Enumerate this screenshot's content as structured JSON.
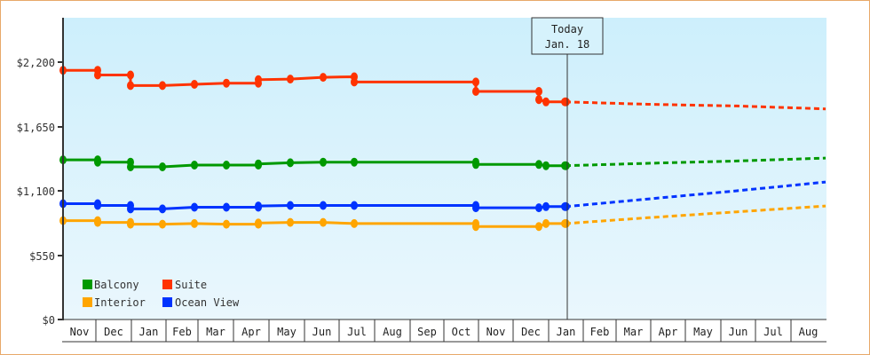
{
  "chart_data": {
    "type": "line",
    "title": "",
    "xlabel": "",
    "ylabel": "",
    "ylim": [
      0,
      2200
    ],
    "y_ticks": [
      "$0",
      "$550",
      "$1,100",
      "$1,650",
      "$2,200"
    ],
    "y_tick_values": [
      0,
      550,
      1100,
      1650,
      2200
    ],
    "x_tick_labels": [
      "Nov",
      "Dec",
      "Jan",
      "Feb",
      "Mar",
      "Apr",
      "May",
      "Jun",
      "Jul",
      "Aug",
      "Sep",
      "Oct",
      "Nov",
      "Dec",
      "Jan",
      "Feb",
      "Mar",
      "Apr",
      "May",
      "Jun",
      "Jul",
      "Aug"
    ],
    "grid": false,
    "legend_position": "lower-left inside",
    "today_marker": {
      "line1": "Today",
      "line2": "Jan. 18"
    },
    "series": [
      {
        "name": "Suite",
        "color": "#ff3300",
        "historical": [
          [
            71,
            2130
          ],
          [
            110,
            2130
          ],
          [
            110,
            2090
          ],
          [
            147,
            2090
          ],
          [
            147,
            2000
          ],
          [
            183,
            2000
          ],
          [
            219,
            2010
          ],
          [
            255,
            2020
          ],
          [
            291,
            2020
          ],
          [
            291,
            2050
          ],
          [
            327,
            2055
          ],
          [
            364,
            2070
          ],
          [
            399,
            2075
          ],
          [
            399,
            2030
          ],
          [
            536,
            2030
          ],
          [
            536,
            1950
          ],
          [
            607,
            1950
          ],
          [
            607,
            1880
          ],
          [
            615,
            1860
          ],
          [
            637,
            1860
          ]
        ],
        "forecast": [
          [
            637,
            1860
          ],
          [
            730,
            1840
          ],
          [
            830,
            1825
          ],
          [
            930,
            1800
          ]
        ]
      },
      {
        "name": "Balcony",
        "color": "#009900",
        "historical": [
          [
            71,
            1365
          ],
          [
            110,
            1365
          ],
          [
            110,
            1345
          ],
          [
            147,
            1345
          ],
          [
            147,
            1305
          ],
          [
            183,
            1305
          ],
          [
            219,
            1320
          ],
          [
            255,
            1320
          ],
          [
            291,
            1320
          ],
          [
            291,
            1330
          ],
          [
            327,
            1340
          ],
          [
            364,
            1345
          ],
          [
            399,
            1345
          ],
          [
            536,
            1345
          ],
          [
            536,
            1325
          ],
          [
            607,
            1325
          ],
          [
            615,
            1315
          ],
          [
            637,
            1315
          ]
        ],
        "forecast": [
          [
            637,
            1315
          ],
          [
            730,
            1335
          ],
          [
            830,
            1355
          ],
          [
            930,
            1380
          ]
        ]
      },
      {
        "name": "Ocean View",
        "color": "#0033ff",
        "historical": [
          [
            71,
            990
          ],
          [
            110,
            990
          ],
          [
            110,
            975
          ],
          [
            147,
            975
          ],
          [
            147,
            945
          ],
          [
            183,
            945
          ],
          [
            219,
            960
          ],
          [
            255,
            960
          ],
          [
            291,
            960
          ],
          [
            291,
            970
          ],
          [
            327,
            975
          ],
          [
            364,
            975
          ],
          [
            399,
            975
          ],
          [
            536,
            975
          ],
          [
            536,
            955
          ],
          [
            607,
            955
          ],
          [
            615,
            965
          ],
          [
            637,
            965
          ]
        ],
        "forecast": [
          [
            637,
            965
          ],
          [
            730,
            1030
          ],
          [
            830,
            1100
          ],
          [
            930,
            1175
          ]
        ]
      },
      {
        "name": "Interior",
        "color": "#ffa500",
        "historical": [
          [
            71,
            845
          ],
          [
            110,
            845
          ],
          [
            110,
            830
          ],
          [
            147,
            830
          ],
          [
            147,
            815
          ],
          [
            183,
            815
          ],
          [
            219,
            820
          ],
          [
            255,
            815
          ],
          [
            291,
            815
          ],
          [
            291,
            825
          ],
          [
            327,
            830
          ],
          [
            364,
            830
          ],
          [
            399,
            820
          ],
          [
            536,
            820
          ],
          [
            536,
            795
          ],
          [
            607,
            795
          ],
          [
            615,
            820
          ],
          [
            637,
            820
          ]
        ],
        "forecast": [
          [
            637,
            820
          ],
          [
            730,
            870
          ],
          [
            830,
            920
          ],
          [
            930,
            970
          ]
        ]
      }
    ]
  },
  "legend": [
    {
      "label": "Balcony",
      "color": "#009900"
    },
    {
      "label": "Suite",
      "color": "#ff3300"
    },
    {
      "label": "Interior",
      "color": "#ffa500"
    },
    {
      "label": "Ocean View",
      "color": "#0033ff"
    }
  ],
  "today": {
    "line1": "Today",
    "line2": "Jan. 18"
  },
  "y_axis": [
    "$2,200",
    "$1,650",
    "$1,100",
    "$550",
    "$0"
  ],
  "x_axis": [
    "Nov",
    "Dec",
    "Jan",
    "Feb",
    "Mar",
    "Apr",
    "May",
    "Jun",
    "Jul",
    "Aug",
    "Sep",
    "Oct",
    "Nov",
    "Dec",
    "Jan",
    "Feb",
    "Mar",
    "Apr",
    "May",
    "Jun",
    "Jul",
    "Aug"
  ]
}
